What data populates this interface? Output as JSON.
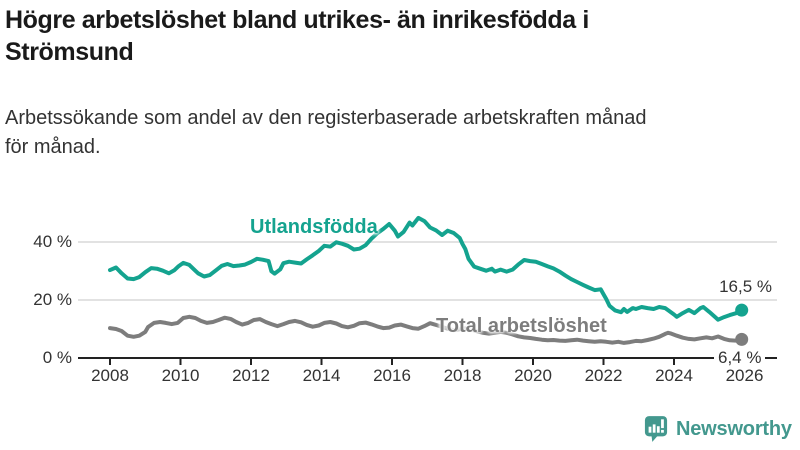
{
  "header": {
    "title": "Högre arbetslöshet bland utrikes- än inrikesfödda i Strömsund",
    "title_lines": [
      "Högre arbetslöshet bland utrikes- än inrikesfödda i",
      "Strömsund"
    ],
    "subtitle": "Arbetssökande som andel av den registerbaserade arbetskraften månad för månad.",
    "subtitle_lines": [
      "Arbetssökande som andel av den registerbaserade arbetskraften månad",
      "för månad."
    ]
  },
  "chart_data": {
    "type": "line",
    "title": "Högre arbetslöshet bland utrikes- än inrikesfödda i Strömsund",
    "subtitle": "Arbetssökande som andel av den registerbaserade arbetskraften månad för månad.",
    "legend_position": "inline-labels-on-lines",
    "grid": "horizontal-only",
    "colors": {
      "axis": "#222222",
      "gridline": "#d9d9d9",
      "tick_text": "#333333"
    },
    "x_axis": {
      "range": [
        2007.1,
        2026.9
      ],
      "ticks": [
        2008,
        2010,
        2012,
        2014,
        2016,
        2018,
        2020,
        2022,
        2024,
        2026
      ],
      "tick_labels": [
        "2008",
        "2010",
        "2012",
        "2014",
        "2016",
        "2018",
        "2020",
        "2022",
        "2024",
        "2026"
      ]
    },
    "y_axis": {
      "range": [
        0,
        50
      ],
      "ticks": [
        0,
        20,
        40
      ],
      "tick_labels": [
        "0 %",
        "20 %",
        "40 %"
      ],
      "gridlines": [
        20,
        40
      ]
    },
    "series": [
      {
        "name": "Utlandsfödda",
        "color": "#14a38f",
        "end_label": "16,5 %",
        "end_value": 16.5,
        "points": [
          [
            2008.0,
            30.3
          ],
          [
            2008.17,
            31.2
          ],
          [
            2008.33,
            29.2
          ],
          [
            2008.5,
            27.4
          ],
          [
            2008.67,
            27.2
          ],
          [
            2008.83,
            27.9
          ],
          [
            2009.0,
            29.6
          ],
          [
            2009.17,
            31.0
          ],
          [
            2009.33,
            30.8
          ],
          [
            2009.5,
            30.1
          ],
          [
            2009.67,
            29.2
          ],
          [
            2009.83,
            30.3
          ],
          [
            2009.95,
            31.7
          ],
          [
            2010.08,
            32.8
          ],
          [
            2010.25,
            32.1
          ],
          [
            2010.42,
            30.1
          ],
          [
            2010.5,
            29.2
          ],
          [
            2010.67,
            28.1
          ],
          [
            2010.83,
            28.6
          ],
          [
            2011.0,
            30.2
          ],
          [
            2011.17,
            31.8
          ],
          [
            2011.33,
            32.4
          ],
          [
            2011.5,
            31.7
          ],
          [
            2011.67,
            31.9
          ],
          [
            2011.83,
            32.2
          ],
          [
            2012.0,
            33.1
          ],
          [
            2012.17,
            34.2
          ],
          [
            2012.33,
            33.9
          ],
          [
            2012.5,
            33.4
          ],
          [
            2012.58,
            29.9
          ],
          [
            2012.67,
            29.1
          ],
          [
            2012.83,
            30.6
          ],
          [
            2012.92,
            32.7
          ],
          [
            2013.08,
            33.2
          ],
          [
            2013.25,
            32.9
          ],
          [
            2013.42,
            32.6
          ],
          [
            2013.58,
            34.0
          ],
          [
            2013.75,
            35.4
          ],
          [
            2013.92,
            36.9
          ],
          [
            2014.08,
            38.7
          ],
          [
            2014.25,
            38.4
          ],
          [
            2014.42,
            39.9
          ],
          [
            2014.58,
            39.4
          ],
          [
            2014.75,
            38.7
          ],
          [
            2014.92,
            37.4
          ],
          [
            2015.08,
            37.7
          ],
          [
            2015.25,
            38.9
          ],
          [
            2015.42,
            41.2
          ],
          [
            2015.58,
            43.0
          ],
          [
            2015.75,
            44.5
          ],
          [
            2015.92,
            46.2
          ],
          [
            2016.08,
            43.9
          ],
          [
            2016.17,
            41.9
          ],
          [
            2016.33,
            43.5
          ],
          [
            2016.5,
            46.7
          ],
          [
            2016.58,
            45.7
          ],
          [
            2016.75,
            48.3
          ],
          [
            2016.92,
            47.2
          ],
          [
            2017.08,
            45.0
          ],
          [
            2017.25,
            44.0
          ],
          [
            2017.42,
            42.4
          ],
          [
            2017.58,
            43.9
          ],
          [
            2017.75,
            43.1
          ],
          [
            2017.92,
            41.4
          ],
          [
            2018.0,
            39.3
          ],
          [
            2018.08,
            37.6
          ],
          [
            2018.17,
            34.2
          ],
          [
            2018.33,
            31.5
          ],
          [
            2018.5,
            30.8
          ],
          [
            2018.67,
            30.1
          ],
          [
            2018.83,
            30.8
          ],
          [
            2018.92,
            29.8
          ],
          [
            2019.08,
            30.5
          ],
          [
            2019.25,
            29.8
          ],
          [
            2019.42,
            30.5
          ],
          [
            2019.58,
            32.2
          ],
          [
            2019.75,
            33.8
          ],
          [
            2019.92,
            33.4
          ],
          [
            2020.08,
            33.2
          ],
          [
            2020.25,
            32.4
          ],
          [
            2020.42,
            31.6
          ],
          [
            2020.58,
            30.9
          ],
          [
            2020.75,
            29.8
          ],
          [
            2020.92,
            28.4
          ],
          [
            2021.08,
            27.2
          ],
          [
            2021.25,
            26.2
          ],
          [
            2021.42,
            25.2
          ],
          [
            2021.58,
            24.3
          ],
          [
            2021.75,
            23.4
          ],
          [
            2021.92,
            23.7
          ],
          [
            2022.0,
            22.0
          ],
          [
            2022.08,
            20.3
          ],
          [
            2022.17,
            18.0
          ],
          [
            2022.33,
            16.4
          ],
          [
            2022.5,
            15.8
          ],
          [
            2022.58,
            16.9
          ],
          [
            2022.67,
            15.9
          ],
          [
            2022.83,
            17.2
          ],
          [
            2022.92,
            16.9
          ],
          [
            2023.08,
            17.6
          ],
          [
            2023.25,
            17.2
          ],
          [
            2023.42,
            16.9
          ],
          [
            2023.58,
            17.6
          ],
          [
            2023.75,
            17.2
          ],
          [
            2023.83,
            16.5
          ],
          [
            2024.0,
            15.0
          ],
          [
            2024.08,
            14.2
          ],
          [
            2024.25,
            15.5
          ],
          [
            2024.42,
            16.6
          ],
          [
            2024.58,
            15.5
          ],
          [
            2024.75,
            17.2
          ],
          [
            2024.83,
            17.6
          ],
          [
            2025.0,
            15.9
          ],
          [
            2025.17,
            14.1
          ],
          [
            2025.25,
            13.2
          ],
          [
            2025.42,
            14.1
          ],
          [
            2025.58,
            14.8
          ],
          [
            2025.75,
            15.4
          ],
          [
            2025.92,
            16.5
          ]
        ]
      },
      {
        "name": "Total arbetslöshet",
        "color": "#7d7d7d",
        "end_label": "6,4 %",
        "end_value": 6.4,
        "points": [
          [
            2008.0,
            10.3
          ],
          [
            2008.17,
            10.0
          ],
          [
            2008.33,
            9.3
          ],
          [
            2008.5,
            7.7
          ],
          [
            2008.67,
            7.3
          ],
          [
            2008.83,
            7.7
          ],
          [
            2009.0,
            9.0
          ],
          [
            2009.08,
            10.7
          ],
          [
            2009.25,
            12.1
          ],
          [
            2009.42,
            12.4
          ],
          [
            2009.58,
            12.1
          ],
          [
            2009.75,
            11.7
          ],
          [
            2009.92,
            12.1
          ],
          [
            2010.08,
            13.8
          ],
          [
            2010.25,
            14.2
          ],
          [
            2010.42,
            13.8
          ],
          [
            2010.58,
            12.8
          ],
          [
            2010.75,
            12.1
          ],
          [
            2010.92,
            12.4
          ],
          [
            2011.08,
            13.1
          ],
          [
            2011.25,
            13.9
          ],
          [
            2011.42,
            13.5
          ],
          [
            2011.58,
            12.4
          ],
          [
            2011.75,
            11.5
          ],
          [
            2011.92,
            12.1
          ],
          [
            2012.08,
            13.1
          ],
          [
            2012.25,
            13.4
          ],
          [
            2012.42,
            12.4
          ],
          [
            2012.58,
            11.7
          ],
          [
            2012.75,
            11.0
          ],
          [
            2012.92,
            11.7
          ],
          [
            2013.08,
            12.4
          ],
          [
            2013.25,
            12.8
          ],
          [
            2013.42,
            12.3
          ],
          [
            2013.58,
            11.4
          ],
          [
            2013.75,
            10.8
          ],
          [
            2013.92,
            11.2
          ],
          [
            2014.08,
            12.1
          ],
          [
            2014.25,
            12.4
          ],
          [
            2014.42,
            11.9
          ],
          [
            2014.58,
            11.0
          ],
          [
            2014.75,
            10.6
          ],
          [
            2014.92,
            11.1
          ],
          [
            2015.08,
            12.0
          ],
          [
            2015.25,
            12.2
          ],
          [
            2015.42,
            11.6
          ],
          [
            2015.58,
            10.9
          ],
          [
            2015.75,
            10.3
          ],
          [
            2015.92,
            10.5
          ],
          [
            2016.08,
            11.2
          ],
          [
            2016.25,
            11.5
          ],
          [
            2016.42,
            10.9
          ],
          [
            2016.58,
            10.3
          ],
          [
            2016.75,
            10.1
          ],
          [
            2016.92,
            11.0
          ],
          [
            2017.08,
            12.0
          ],
          [
            2017.25,
            11.4
          ],
          [
            2017.42,
            10.7
          ],
          [
            2017.58,
            10.1
          ],
          [
            2017.75,
            9.6
          ],
          [
            2017.92,
            9.9
          ],
          [
            2018.08,
            10.2
          ],
          [
            2018.25,
            9.8
          ],
          [
            2018.42,
            9.2
          ],
          [
            2018.58,
            8.7
          ],
          [
            2018.75,
            8.4
          ],
          [
            2018.92,
            8.7
          ],
          [
            2019.08,
            9.0
          ],
          [
            2019.25,
            8.7
          ],
          [
            2019.42,
            8.1
          ],
          [
            2019.58,
            7.5
          ],
          [
            2019.75,
            7.1
          ],
          [
            2019.92,
            6.9
          ],
          [
            2020.08,
            6.6
          ],
          [
            2020.25,
            6.3
          ],
          [
            2020.42,
            6.1
          ],
          [
            2020.58,
            6.2
          ],
          [
            2020.75,
            6.0
          ],
          [
            2020.92,
            5.9
          ],
          [
            2021.08,
            6.1
          ],
          [
            2021.25,
            6.3
          ],
          [
            2021.42,
            6.0
          ],
          [
            2021.58,
            5.8
          ],
          [
            2021.75,
            5.6
          ],
          [
            2021.92,
            5.8
          ],
          [
            2022.08,
            5.6
          ],
          [
            2022.25,
            5.3
          ],
          [
            2022.42,
            5.6
          ],
          [
            2022.58,
            5.2
          ],
          [
            2022.75,
            5.5
          ],
          [
            2022.92,
            5.9
          ],
          [
            2023.08,
            5.8
          ],
          [
            2023.25,
            6.2
          ],
          [
            2023.42,
            6.7
          ],
          [
            2023.58,
            7.3
          ],
          [
            2023.75,
            8.3
          ],
          [
            2023.83,
            8.7
          ],
          [
            2023.92,
            8.4
          ],
          [
            2024.08,
            7.7
          ],
          [
            2024.25,
            7.0
          ],
          [
            2024.42,
            6.6
          ],
          [
            2024.58,
            6.4
          ],
          [
            2024.75,
            6.8
          ],
          [
            2024.92,
            7.1
          ],
          [
            2025.08,
            6.8
          ],
          [
            2025.25,
            7.4
          ],
          [
            2025.42,
            6.6
          ],
          [
            2025.58,
            6.1
          ],
          [
            2025.75,
            6.0
          ],
          [
            2025.92,
            6.4
          ]
        ]
      }
    ]
  },
  "footer": {
    "brand": "Newsworthy",
    "brand_color": "#43988e",
    "logo_icon": "bar-chart-speech-bubble-icon"
  }
}
